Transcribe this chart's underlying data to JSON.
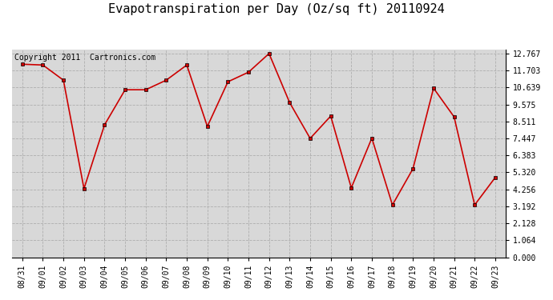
{
  "title": "Evapotranspiration per Day (Oz/sq ft) 20110924",
  "copyright_text": "Copyright 2011  Cartronics.com",
  "dates": [
    "08/31",
    "09/01",
    "09/02",
    "09/03",
    "09/04",
    "09/05",
    "09/06",
    "09/07",
    "09/08",
    "09/09",
    "09/10",
    "09/11",
    "09/12",
    "09/13",
    "09/14",
    "09/15",
    "09/16",
    "09/17",
    "09/18",
    "09/19",
    "09/20",
    "09/21",
    "09/22",
    "09/23"
  ],
  "values": [
    12.1,
    12.05,
    11.1,
    4.3,
    8.3,
    10.5,
    10.5,
    11.1,
    12.05,
    8.2,
    11.0,
    11.6,
    12.767,
    9.7,
    7.45,
    8.85,
    4.35,
    7.47,
    3.28,
    5.55,
    10.6,
    8.8,
    3.28,
    5.0
  ],
  "line_color": "#cc0000",
  "marker_color": "#cc0000",
  "bg_color": "#d8d8d8",
  "grid_color": "#aaaaaa",
  "yticks": [
    0.0,
    1.064,
    2.128,
    3.192,
    4.256,
    5.32,
    6.383,
    7.447,
    8.511,
    9.575,
    10.639,
    11.703,
    12.767
  ],
  "ylim": [
    0.0,
    12.767
  ],
  "title_fontsize": 11,
  "copyright_fontsize": 7,
  "tick_fontsize": 7,
  "figwidth": 6.9,
  "figheight": 3.75,
  "dpi": 100
}
